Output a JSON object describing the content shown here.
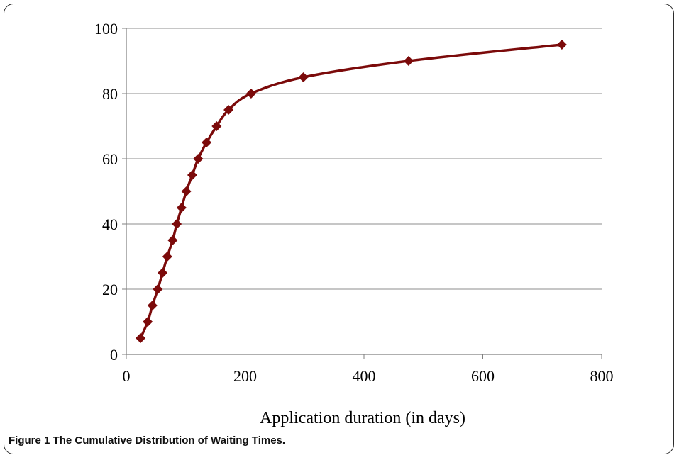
{
  "figure": {
    "label": "Figure 1",
    "caption": "The Cumulative Distribution of Waiting Times."
  },
  "colors": {
    "series": "#7b0a0a",
    "grid": "#8c8c8c",
    "axis": "#7f7f7f"
  },
  "chart_data": {
    "type": "line",
    "title": "",
    "xlabel": "Application duration (in days)",
    "ylabel": "",
    "xlim": [
      0,
      800
    ],
    "ylim": [
      0,
      100
    ],
    "xticks": [
      0,
      200,
      400,
      600,
      800
    ],
    "yticks": [
      0,
      20,
      40,
      60,
      80,
      100
    ],
    "grid": "horizontal",
    "legend": "none",
    "marker": "diamond",
    "smooth": true,
    "series": [
      {
        "x": [
          24,
          36,
          44,
          53,
          61,
          69,
          78,
          85,
          93,
          101,
          111,
          121,
          135,
          152,
          172,
          210,
          298,
          475,
          733
        ],
        "y": [
          5,
          10,
          15,
          20,
          25,
          30,
          35,
          40,
          45,
          50,
          55,
          60,
          65,
          70,
          75,
          80,
          85,
          90,
          95
        ]
      }
    ]
  }
}
